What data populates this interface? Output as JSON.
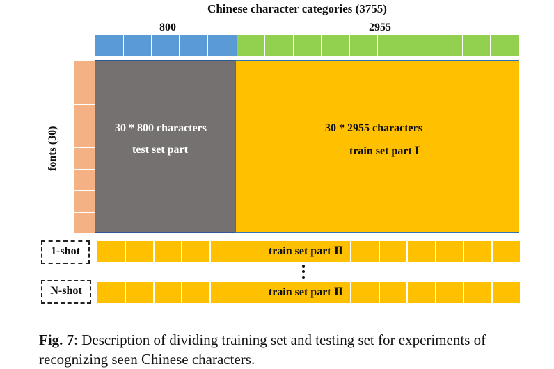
{
  "title": "Chinese character categories (3755)",
  "header": {
    "left_count": "800",
    "right_count": "2955"
  },
  "y_label": "fonts (30)",
  "test_block": {
    "line1": "30 * 800 characters",
    "line2": "test set part"
  },
  "train_block": {
    "line1": "30 * 2955 characters",
    "line2": "train set part Ⅰ"
  },
  "rows": [
    {
      "shot_label": "1-shot",
      "text": "train set part Ⅱ"
    },
    {
      "shot_label": "N-shot",
      "text": "train set part Ⅱ"
    }
  ],
  "caption": {
    "fig": "Fig. 7",
    "text": ": Description of dividing training set and testing set for experiments of recognizing seen Chinese characters."
  },
  "colors": {
    "test": "#767171",
    "train": "#ffc000",
    "blue": "#5b9bd5",
    "green": "#92d050",
    "fonts": "#f4b183"
  }
}
